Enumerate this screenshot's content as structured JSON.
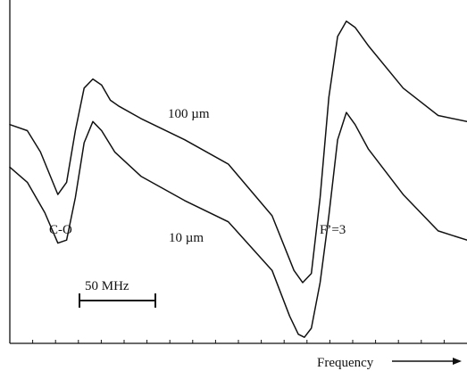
{
  "chart_data": {
    "type": "line",
    "xlabel": "Frequency",
    "ylabel": "",
    "grid": false,
    "legend": "none",
    "series": [
      {
        "name": "100 µm",
        "x": [
          0,
          20,
          35,
          55,
          65,
          75,
          85,
          95,
          105,
          115,
          125,
          150,
          200,
          250,
          300,
          325,
          335,
          345,
          355,
          365,
          375,
          385,
          395,
          410,
          450,
          490,
          523
        ],
        "y": [
          0.72,
          0.7,
          0.63,
          0.49,
          0.53,
          0.7,
          0.84,
          0.87,
          0.85,
          0.8,
          0.78,
          0.74,
          0.67,
          0.59,
          0.42,
          0.24,
          0.2,
          0.23,
          0.48,
          0.81,
          1.01,
          1.06,
          1.04,
          0.98,
          0.84,
          0.75,
          0.73
        ]
      },
      {
        "name": "10 µm",
        "x": [
          0,
          20,
          40,
          55,
          65,
          75,
          85,
          95,
          105,
          120,
          150,
          200,
          250,
          300,
          320,
          330,
          337,
          345,
          355,
          365,
          375,
          385,
          395,
          410,
          450,
          490,
          523
        ],
        "y": [
          0.58,
          0.53,
          0.43,
          0.33,
          0.34,
          0.48,
          0.66,
          0.73,
          0.7,
          0.63,
          0.55,
          0.47,
          0.4,
          0.24,
          0.09,
          0.03,
          0.02,
          0.05,
          0.2,
          0.42,
          0.67,
          0.76,
          0.72,
          0.64,
          0.49,
          0.37,
          0.34
        ]
      }
    ],
    "annotations": [
      {
        "text": "C-O"
      },
      {
        "text": "F’=3"
      },
      {
        "text": "50 MHz"
      }
    ],
    "xlim": [
      0,
      523
    ],
    "ylim": [
      0,
      1.13
    ]
  }
}
